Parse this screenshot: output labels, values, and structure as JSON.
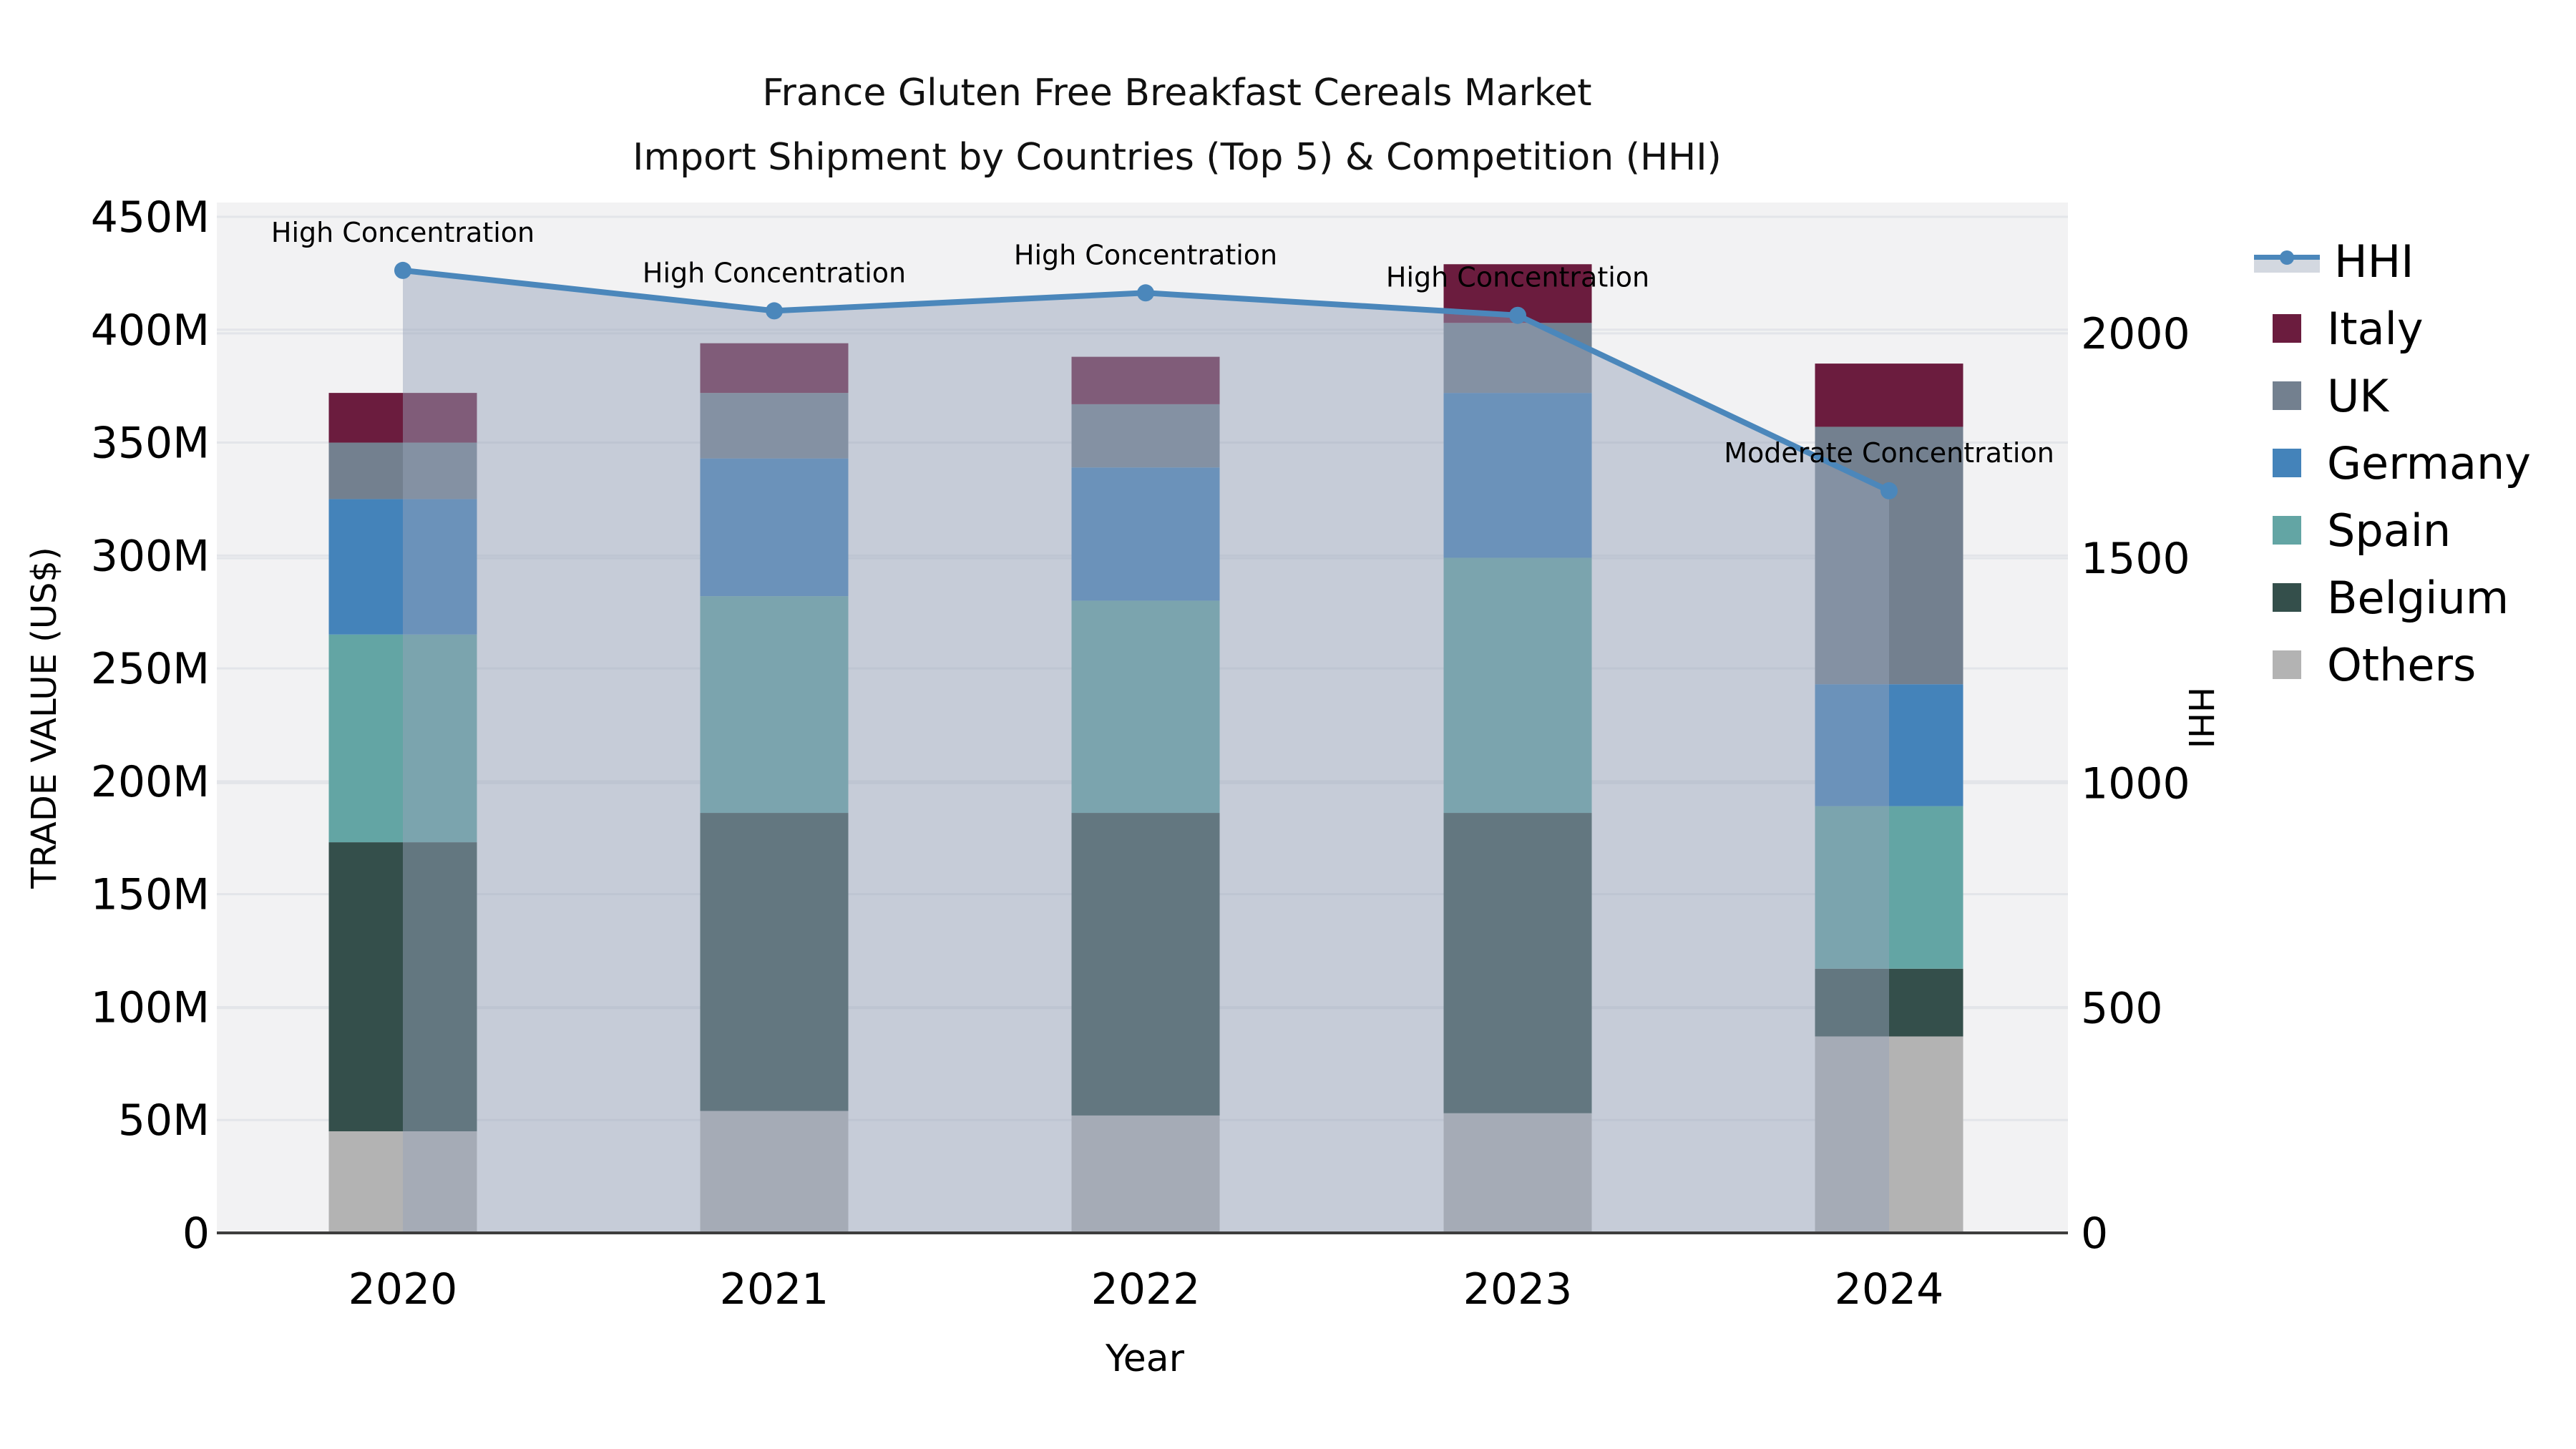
{
  "title": {
    "line1": "France Gluten Free Breakfast Cereals Market",
    "line2": "Import Shipment by Countries (Top 5) & Competition (HHI)"
  },
  "axes": {
    "y_left_title": "TRADE VALUE (US$)",
    "y_right_title": "HHI",
    "x_title": "Year",
    "y_left_tick_labels": [
      "0",
      "50M",
      "100M",
      "150M",
      "200M",
      "250M",
      "300M",
      "350M",
      "400M",
      "450M"
    ],
    "y_left_tick_values": [
      0,
      50,
      100,
      150,
      200,
      250,
      300,
      350,
      400,
      450
    ],
    "y_right_tick_labels": [
      "0",
      "500",
      "1000",
      "1500",
      "2000"
    ],
    "y_right_tick_values": [
      0,
      500,
      1000,
      1500,
      2000
    ]
  },
  "legend": {
    "items": [
      {
        "label": "HHI",
        "type": "line",
        "color": "#4b87bb",
        "band_color": "#d3d8e0"
      },
      {
        "label": "Italy",
        "type": "swatch",
        "color": "#6b1c3e"
      },
      {
        "label": "UK",
        "type": "swatch",
        "color": "#73808f"
      },
      {
        "label": "Germany",
        "type": "swatch",
        "color": "#4483ba"
      },
      {
        "label": "Spain",
        "type": "swatch",
        "color": "#63a5a4"
      },
      {
        "label": "Belgium",
        "type": "swatch",
        "color": "#344f4b"
      },
      {
        "label": "Others",
        "type": "swatch",
        "color": "#b3b3b3"
      }
    ]
  },
  "chart_data": {
    "type": "bar",
    "subtype": "stacked-bars-with-line-overlay",
    "categories": [
      "2020",
      "2021",
      "2022",
      "2023",
      "2024"
    ],
    "value_unit": "M US$",
    "ylim_left": [
      0,
      450
    ],
    "ylim_right": [
      0,
      2250
    ],
    "grid": true,
    "legend_position": "right",
    "series": [
      {
        "name": "Others",
        "color": "#b3b3b3",
        "values": [
          45,
          54,
          52,
          53,
          87
        ]
      },
      {
        "name": "Belgium",
        "color": "#344f4b",
        "values": [
          128,
          132,
          134,
          133,
          30
        ]
      },
      {
        "name": "Spain",
        "color": "#63a5a4",
        "values": [
          92,
          96,
          94,
          113,
          72
        ]
      },
      {
        "name": "Germany",
        "color": "#4483ba",
        "values": [
          60,
          61,
          59,
          73,
          54
        ]
      },
      {
        "name": "UK",
        "color": "#73808f",
        "values": [
          25,
          29,
          28,
          31,
          114
        ]
      },
      {
        "name": "Italy",
        "color": "#6b1c3e",
        "values": [
          22,
          22,
          21,
          26,
          28
        ]
      }
    ],
    "stack_totals": [
      372,
      394,
      388,
      429,
      385
    ],
    "line_series": {
      "name": "HHI",
      "axis": "right",
      "color": "#4b87bb",
      "area_fill": "rgba(151,164,187,0.48)",
      "values": [
        2140,
        2050,
        2090,
        2040,
        1650
      ]
    },
    "annotations": [
      {
        "category": "2020",
        "text": "High Concentration"
      },
      {
        "category": "2021",
        "text": "High Concentration"
      },
      {
        "category": "2022",
        "text": "High Concentration"
      },
      {
        "category": "2023",
        "text": "High Concentration"
      },
      {
        "category": "2024",
        "text": "Moderate Concentration"
      }
    ],
    "plot_bg": "#f2f2f3",
    "grid_color": "#e3e5e9",
    "spine_color": "#3d3d3d"
  }
}
